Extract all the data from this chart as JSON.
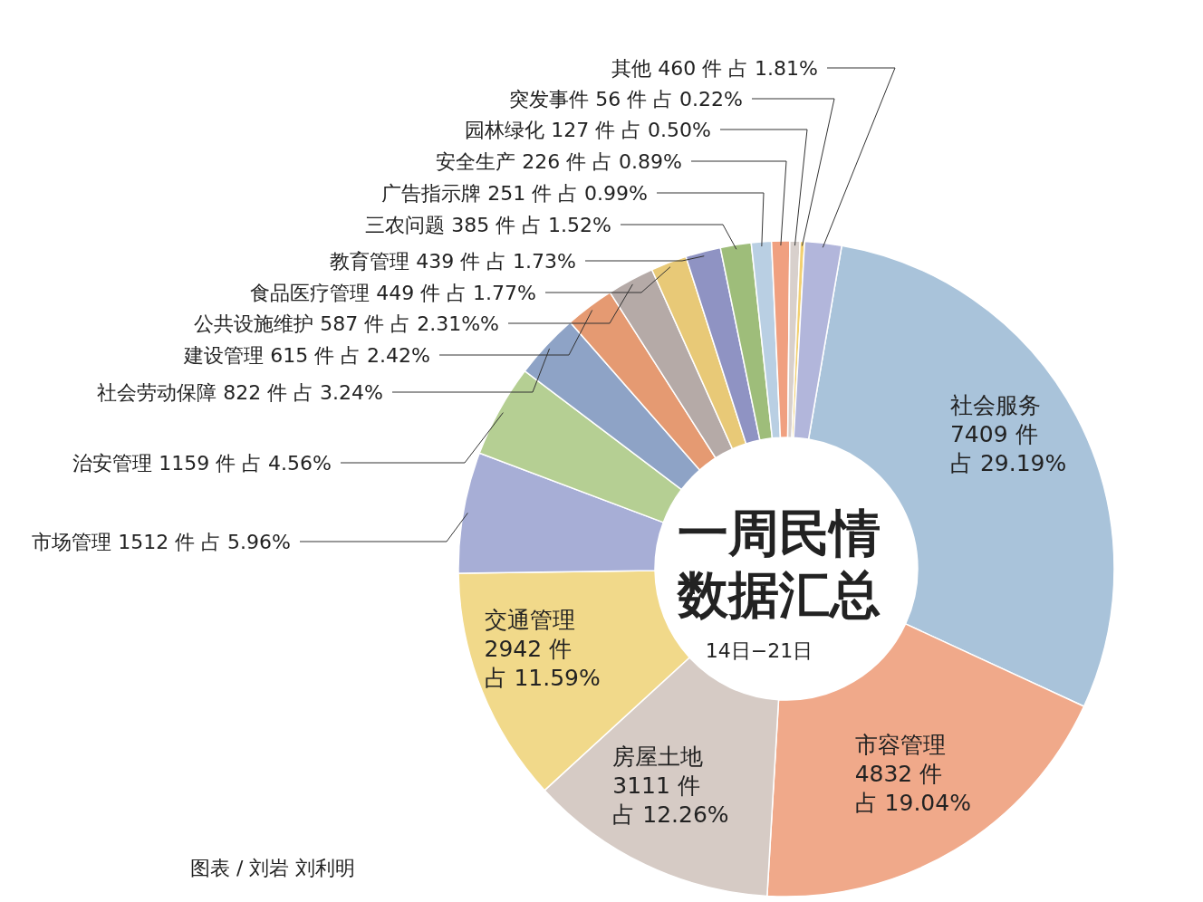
{
  "chart_data": {
    "type": "donut",
    "title": "一周民情数据汇总",
    "subtitle": "14日−21日",
    "categories": [
      "社会服务",
      "市容管理",
      "房屋土地",
      "交通管理",
      "市场管理",
      "治安管理",
      "社会劳动保障",
      "建设管理",
      "公共设施维护",
      "食品医疗管理",
      "教育管理",
      "三农问题",
      "广告指示牌",
      "安全生产",
      "园林绿化",
      "突发事件",
      "其他"
    ],
    "values": [
      7409,
      4832,
      3111,
      2942,
      1512,
      1159,
      822,
      615,
      587,
      449,
      439,
      385,
      251,
      226,
      127,
      56,
      460
    ],
    "value_labels": [
      "7409 件占 29.19%",
      "4832 件占 19.04%",
      "3111 件占 12.26%",
      "2942 件占 11.59%",
      "1512 件 占 5.96%",
      "1159 件 占 4.56%",
      "822 件 占 3.24%",
      "615 件 占 2.42%",
      "587 件 占 2.31%%",
      "449 件 占 1.77%",
      "439 件 占 1.73%",
      "385 件 占 1.52%",
      "251 件 占 0.99%",
      "226 件 占 0.89%",
      "127 件 占 0.50%",
      "56 件 占 0.22%",
      "460 件 占 1.81%"
    ],
    "colors": [
      "#a9c3da",
      "#f0a98a",
      "#d6cbc5",
      "#f1d98a",
      "#a7aed6",
      "#b5cf93",
      "#8ea3c6",
      "#e59a72",
      "#b5aaa7",
      "#e8c977",
      "#8f93c3",
      "#9ebd7a",
      "#b9cfe3",
      "#f0a080",
      "#d8d0cc",
      "#f2d070",
      "#b2b6db"
    ],
    "annotations": [
      "图表 / 刘岩  刘利明"
    ]
  }
}
